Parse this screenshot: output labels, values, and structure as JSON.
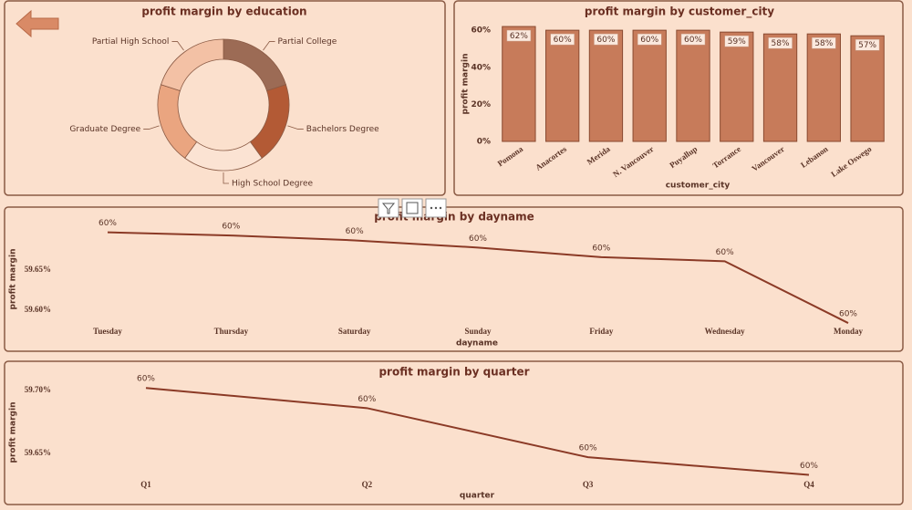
{
  "chart_data": [
    {
      "type": "pie",
      "title": "profit margin by education",
      "categories": [
        "Partial College",
        "Bachelors Degree",
        "High School Degree",
        "Graduate Degree",
        "Partial High School"
      ],
      "values": [
        60,
        60,
        60,
        60,
        60
      ],
      "colors": [
        "#9c6b55",
        "#b35a35",
        "#fbe3d3",
        "#eaa580",
        "#f3c1a5"
      ]
    },
    {
      "type": "bar",
      "title": "profit margin by customer_city",
      "xlabel": "customer_city",
      "ylabel": "profit margin",
      "categories": [
        "Pomona",
        "Anacortes",
        "Merida",
        "N. Vancouver",
        "Puyallup",
        "Torrance",
        "Vancouver",
        "Lebanon",
        "Lake Oswego"
      ],
      "values": [
        62,
        60,
        60,
        60,
        60,
        59,
        58,
        58,
        57
      ],
      "value_labels": [
        "62%",
        "60%",
        "60%",
        "60%",
        "60%",
        "59%",
        "58%",
        "58%",
        "57%"
      ],
      "color": "#c77b5a",
      "ylim": [
        0,
        64
      ],
      "yticks": [
        {
          "value": 0,
          "label": "0%"
        },
        {
          "value": 20,
          "label": "20%"
        },
        {
          "value": 40,
          "label": "40%"
        },
        {
          "value": 60,
          "label": "60%"
        }
      ]
    },
    {
      "type": "line",
      "title": "profit margin by dayname",
      "xlabel": "dayname",
      "ylabel": "profit margin",
      "categories": [
        "Tuesday",
        "Thursday",
        "Saturday",
        "Sunday",
        "Friday",
        "Wednesday",
        "Monday"
      ],
      "values": [
        59.697,
        59.693,
        59.687,
        59.678,
        59.666,
        59.661,
        59.584
      ],
      "value_labels": [
        "60%",
        "60%",
        "60%",
        "60%",
        "60%",
        "60%",
        "60%"
      ],
      "color": "#8b3a26",
      "ylim": [
        59.58,
        59.7
      ],
      "yticks": [
        {
          "value": 59.6,
          "label": "59.60%"
        },
        {
          "value": 59.65,
          "label": "59.65%"
        }
      ]
    },
    {
      "type": "line",
      "title": "profit margin by quarter",
      "xlabel": "quarter",
      "ylabel": "profit margin",
      "categories": [
        "Q1",
        "Q2",
        "Q3",
        "Q4"
      ],
      "values": [
        59.702,
        59.686,
        59.647,
        59.633
      ],
      "value_labels": [
        "60%",
        "60%",
        "60%",
        "60%"
      ],
      "color": "#8b3a26",
      "ylim": [
        59.625,
        59.71
      ],
      "yticks": [
        {
          "value": 59.65,
          "label": "59.65%"
        },
        {
          "value": 59.7,
          "label": "59.70%"
        }
      ]
    }
  ]
}
